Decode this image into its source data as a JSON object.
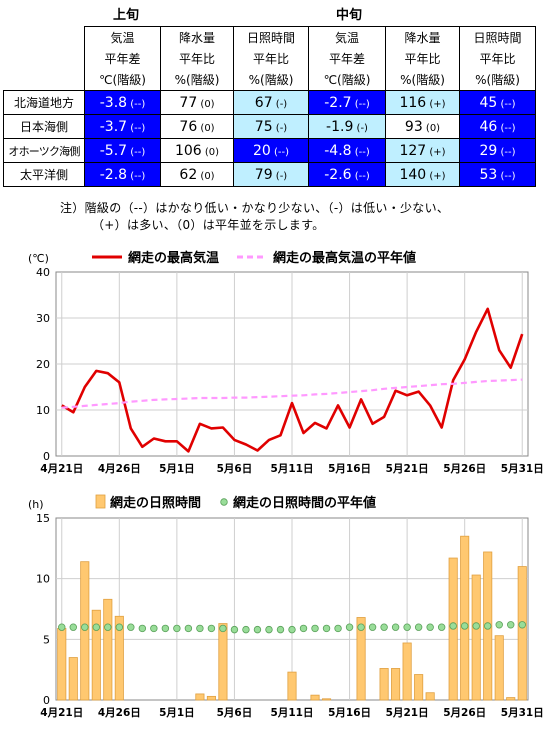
{
  "table": {
    "group1": "上旬",
    "group2": "中旬",
    "headers": [
      [
        "気温",
        "平年差",
        "℃(階級)"
      ],
      [
        "降水量",
        "平年比",
        "%(階級)"
      ],
      [
        "日照時間",
        "平年比",
        "%(階級)"
      ],
      [
        "気温",
        "平年差",
        "℃(階級)"
      ],
      [
        "降水量",
        "平年比",
        "%(階級)"
      ],
      [
        "日照時間",
        "平年比",
        "%(階級)"
      ]
    ],
    "rows": [
      {
        "label": "北海道地方",
        "cells": [
          [
            "-3.8",
            "(--)"
          ],
          [
            "77",
            "(0)"
          ],
          [
            "67",
            "(-)"
          ],
          [
            "-2.7",
            "(--)"
          ],
          [
            "116",
            "(+)"
          ],
          [
            "45",
            "(--)"
          ]
        ]
      },
      {
        "label": "日本海側",
        "cells": [
          [
            "-3.7",
            "(--)"
          ],
          [
            "76",
            "(0)"
          ],
          [
            "75",
            "(-)"
          ],
          [
            "-1.9",
            "(-)"
          ],
          [
            "93",
            "(0)"
          ],
          [
            "46",
            "(--)"
          ]
        ]
      },
      {
        "label": "オホーツク海側",
        "cells": [
          [
            "-5.7",
            "(--)"
          ],
          [
            "106",
            "(0)"
          ],
          [
            "20",
            "(--)"
          ],
          [
            "-4.8",
            "(--)"
          ],
          [
            "127",
            "(+)"
          ],
          [
            "29",
            "(--)"
          ]
        ]
      },
      {
        "label": "太平洋側",
        "cells": [
          [
            "-2.8",
            "(--)"
          ],
          [
            "62",
            "(0)"
          ],
          [
            "79",
            "(-)"
          ],
          [
            "-2.6",
            "(--)"
          ],
          [
            "140",
            "(+)"
          ],
          [
            "53",
            "(--)"
          ]
        ]
      }
    ],
    "class_colors": {
      "(--)": "#0000ff",
      "(-)": "#bfefff",
      "(0)": "#ffffff",
      "(+)": "#bfefff"
    },
    "note_line1": "注）階級の（--）はかなり低い・かなり少ない、（-）は低い・少ない、",
    "note_line2": "（+）は多い、（0）は平年並を示します。"
  },
  "chart_data": [
    {
      "type": "line",
      "ylabel": "(℃)",
      "ylim": [
        0,
        40
      ],
      "yticks": [
        0,
        10,
        20,
        30,
        40
      ],
      "xticks": [
        "4月21日",
        "4月26日",
        "5月1日",
        "5月6日",
        "5月11日",
        "5月16日",
        "5月21日",
        "5月26日",
        "5月31日"
      ],
      "legend_position": "top",
      "series": [
        {
          "name": "網走の最高気温",
          "color": "#e00000",
          "style": "solid",
          "values": [
            11.0,
            9.5,
            15.0,
            18.5,
            18.0,
            16.0,
            6.0,
            2.0,
            3.8,
            3.2,
            3.2,
            1.0,
            7.0,
            6.0,
            6.2,
            3.5,
            2.5,
            1.2,
            3.5,
            4.5,
            11.5,
            5.0,
            7.2,
            6.0,
            11.0,
            6.2,
            12.3,
            7.0,
            8.5,
            14.2,
            13.2,
            14.0,
            11.0,
            6.2,
            16.5,
            21.0,
            27.0,
            32.0,
            23.0,
            19.2,
            26.5
          ]
        },
        {
          "name": "網走の最高気温の平年値",
          "color": "#ff99ff",
          "style": "dashed",
          "values": [
            10.5,
            10.7,
            10.9,
            11.1,
            11.3,
            11.5,
            11.8,
            12.0,
            12.2,
            12.3,
            12.4,
            12.5,
            12.6,
            12.6,
            12.6,
            12.7,
            12.7,
            12.8,
            12.9,
            13.0,
            13.1,
            13.2,
            13.4,
            13.5,
            13.7,
            13.9,
            14.1,
            14.3,
            14.6,
            14.8,
            15.0,
            15.2,
            15.4,
            15.6,
            15.7,
            15.9,
            16.1,
            16.3,
            16.4,
            16.5,
            16.6
          ]
        }
      ]
    },
    {
      "type": "bar",
      "ylabel": "(h)",
      "ylim": [
        0,
        15
      ],
      "yticks": [
        0,
        5,
        10,
        15
      ],
      "xticks": [
        "4月21日",
        "4月26日",
        "5月1日",
        "5月6日",
        "5月11日",
        "5月16日",
        "5月21日",
        "5月26日",
        "5月31日"
      ],
      "legend_position": "top",
      "series": [
        {
          "name": "網走の日照時間",
          "color": "#ffc870",
          "style": "bar",
          "values": [
            5.9,
            3.5,
            11.4,
            7.4,
            8.3,
            6.9,
            0,
            0,
            0,
            0,
            0,
            0,
            0.5,
            0.3,
            6.3,
            0,
            0,
            0,
            0,
            0,
            2.3,
            0,
            0.4,
            0.1,
            0,
            0,
            6.8,
            0,
            2.6,
            2.6,
            4.7,
            2.1,
            0.6,
            0,
            11.7,
            13.5,
            10.3,
            12.2,
            5.3,
            0.2,
            11.0
          ]
        },
        {
          "name": "網走の日照時間の平年値",
          "color": "#99dd99",
          "style": "dots",
          "values": [
            6.0,
            6.0,
            6.0,
            6.0,
            6.0,
            6.0,
            6.0,
            5.9,
            5.9,
            5.9,
            5.9,
            5.9,
            5.9,
            5.9,
            5.9,
            5.8,
            5.8,
            5.8,
            5.8,
            5.8,
            5.8,
            5.9,
            5.9,
            5.9,
            5.9,
            6.0,
            6.0,
            6.0,
            6.0,
            6.0,
            6.0,
            6.0,
            6.0,
            6.0,
            6.1,
            6.1,
            6.1,
            6.1,
            6.2,
            6.2,
            6.2
          ]
        }
      ]
    }
  ]
}
